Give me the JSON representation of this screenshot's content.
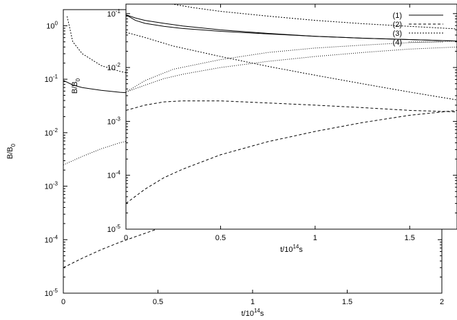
{
  "chart_data": [
    {
      "type": "line",
      "yscale": "log",
      "xlim": [
        0,
        2
      ],
      "ylim": [
        1e-05,
        2
      ],
      "xticks": [
        0,
        0.5,
        1,
        1.5,
        2
      ],
      "xtick_labels": [
        "0",
        "0.5",
        "1",
        "1.5",
        "2"
      ],
      "yticks": [
        1e-05,
        0.0001,
        0.001,
        0.01,
        0.1,
        1
      ],
      "ytick_labels": [
        {
          "base": "10",
          "exp": "-5"
        },
        {
          "base": "10",
          "exp": "-4"
        },
        {
          "base": "10",
          "exp": "-3"
        },
        {
          "base": "10",
          "exp": "-2"
        },
        {
          "base": "10",
          "exp": "-1"
        },
        {
          "base": "10",
          "exp": "0"
        }
      ],
      "xlabel": {
        "base": "t/10",
        "exp": "14",
        "unit": "s"
      },
      "ylabel": {
        "base": "B/B",
        "sub": "0"
      },
      "series": [
        {
          "style": "solid",
          "x": [
            0,
            0.05,
            0.1,
            0.2,
            0.3,
            0.5,
            0.75,
            1.0,
            1.25,
            1.5,
            1.75,
            2.0
          ],
          "y": [
            0.095,
            0.078,
            0.07,
            0.062,
            0.057,
            0.051,
            0.046,
            0.042,
            0.039,
            0.037,
            0.035,
            0.034
          ]
        },
        {
          "style": "dashed",
          "x": [
            0,
            0.1,
            0.2,
            0.3,
            0.5,
            0.75,
            1.0,
            1.25,
            1.5,
            1.75,
            2.0
          ],
          "y": [
            3e-05,
            4.5e-05,
            6.5e-05,
            9e-05,
            0.00016,
            0.00028,
            0.00045,
            0.00065,
            0.00085,
            0.0011,
            0.0014
          ]
        },
        {
          "style": "dotted",
          "x": [
            0.02,
            0.05,
            0.1,
            0.2,
            0.3,
            0.5,
            0.75,
            1.0,
            1.25,
            1.5,
            1.75,
            2.0
          ],
          "y": [
            1.5,
            0.5,
            0.3,
            0.18,
            0.14,
            0.1,
            0.075,
            0.06,
            0.05,
            0.043,
            0.037,
            0.033
          ]
        },
        {
          "style": "dotted-sparse",
          "x": [
            0,
            0.1,
            0.2,
            0.3,
            0.5,
            0.75,
            1.0,
            1.25,
            1.5,
            1.75,
            2.0
          ],
          "y": [
            0.0025,
            0.0036,
            0.005,
            0.0065,
            0.0095,
            0.013,
            0.017,
            0.021,
            0.025,
            0.029,
            0.033
          ]
        }
      ]
    },
    {
      "type": "line",
      "yscale": "log",
      "xlim": [
        0,
        1.75
      ],
      "ylim": [
        1e-05,
        0.15
      ],
      "xticks": [
        0,
        0.5,
        1,
        1.5
      ],
      "xtick_labels": [
        "0",
        "0.5",
        "1",
        "1.5"
      ],
      "yticks": [
        1e-05,
        0.0001,
        0.001,
        0.01,
        0.1
      ],
      "ytick_labels": [
        {
          "base": "10",
          "exp": "-5"
        },
        {
          "base": "10",
          "exp": "-4"
        },
        {
          "base": "10",
          "exp": "-3"
        },
        {
          "base": "10",
          "exp": "-2"
        },
        {
          "base": "10",
          "exp": "-1"
        }
      ],
      "xlabel": {
        "base": "t/10",
        "exp": "14",
        "unit": "s"
      },
      "ylabel": {
        "base": "B/B",
        "sub": "0"
      },
      "legend": {
        "placement": "top-right",
        "entries": [
          "(1)",
          "(2)",
          "(3)",
          "(4)"
        ]
      },
      "series": [
        {
          "name": "(1)",
          "style": "solid",
          "x": [
            0,
            0.05,
            0.1,
            0.2,
            0.3,
            0.5,
            0.75,
            1.0,
            1.25,
            1.5,
            1.75
          ],
          "y": [
            0.095,
            0.075,
            0.066,
            0.058,
            0.053,
            0.047,
            0.042,
            0.038,
            0.035,
            0.033,
            0.031
          ]
        },
        {
          "name": "(2)",
          "style": "dashed",
          "x": [
            0,
            0.1,
            0.2,
            0.3,
            0.5,
            0.75,
            1.0,
            1.25,
            1.5,
            1.75
          ],
          "y": [
            0.0016,
            0.002,
            0.0023,
            0.0024,
            0.0024,
            0.0022,
            0.002,
            0.0018,
            0.0016,
            0.0015
          ]
        },
        {
          "name": "(3)",
          "style": "dotted",
          "x": [
            0,
            0.1,
            0.25,
            0.5,
            0.75,
            1.0,
            1.25,
            1.5,
            1.75
          ],
          "y": [
            0.045,
            0.036,
            0.025,
            0.016,
            0.0105,
            0.0072,
            0.005,
            0.0035,
            0.0025
          ]
        },
        {
          "name": "(4)",
          "style": "dotted-sparse",
          "x": [
            0,
            0.1,
            0.25,
            0.5,
            0.75,
            1.0,
            1.25,
            1.5,
            1.75
          ],
          "y": [
            0.0035,
            0.0057,
            0.0093,
            0.014,
            0.019,
            0.023,
            0.026,
            0.029,
            0.031
          ]
        },
        {
          "name": "",
          "style": "solid",
          "x": [
            0,
            0.05,
            0.1,
            0.2,
            0.3,
            0.5,
            0.75,
            1.0,
            1.25,
            1.5,
            1.75
          ],
          "y": [
            0.095,
            0.083,
            0.075,
            0.066,
            0.059,
            0.05,
            0.043,
            0.038,
            0.035,
            0.033,
            0.031
          ]
        },
        {
          "name": "",
          "style": "dashed",
          "x": [
            0,
            0.1,
            0.2,
            0.3,
            0.5,
            0.75,
            1.0,
            1.25,
            1.5,
            1.75
          ],
          "y": [
            3e-05,
            5.5e-05,
            9e-05,
            0.00013,
            0.00024,
            0.00042,
            0.00065,
            0.00095,
            0.0013,
            0.0016
          ]
        },
        {
          "name": "",
          "style": "dotted",
          "x": [
            0.1,
            0.2,
            0.35,
            0.5,
            0.75,
            1.0,
            1.25,
            1.5,
            1.75
          ],
          "y": [
            0.2,
            0.16,
            0.13,
            0.11,
            0.09,
            0.075,
            0.065,
            0.058,
            0.052
          ]
        },
        {
          "name": "",
          "style": "dotted-sparse",
          "x": [
            0,
            0.1,
            0.2,
            0.3,
            0.5,
            0.75,
            1.0,
            1.25,
            1.5,
            1.75
          ],
          "y": [
            0.0035,
            0.0047,
            0.0062,
            0.0075,
            0.01,
            0.013,
            0.016,
            0.019,
            0.022,
            0.024
          ]
        }
      ]
    }
  ]
}
